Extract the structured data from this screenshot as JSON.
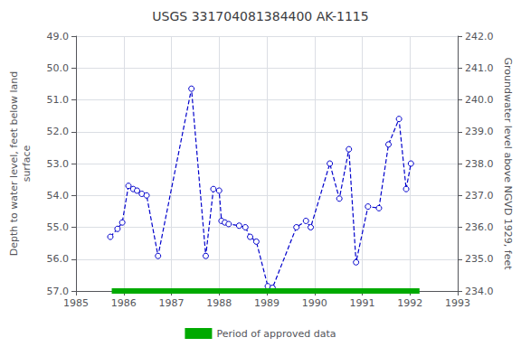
{
  "chart_data": {
    "type": "line",
    "title": "USGS 331704081384400 AK-1115",
    "ylabel": "Depth to water level, feet below land\nsurface",
    "y2label": "Groundwater level above NGVD 1929, feet",
    "xlim": [
      1985,
      1993
    ],
    "xticks": [
      1985,
      1986,
      1987,
      1988,
      1989,
      1990,
      1991,
      1992,
      1993
    ],
    "ylim": [
      57.0,
      49.0
    ],
    "yticks": [
      {
        "value": 49.0,
        "label": "49.0"
      },
      {
        "value": 50.0,
        "label": "50.0"
      },
      {
        "value": 51.0,
        "label": "51.0"
      },
      {
        "value": 52.0,
        "label": "52.0"
      },
      {
        "value": 53.0,
        "label": "53.0"
      },
      {
        "value": 54.0,
        "label": "54.0"
      },
      {
        "value": 55.0,
        "label": "55.0"
      },
      {
        "value": 56.0,
        "label": "56.0"
      },
      {
        "value": 57.0,
        "label": "57.0"
      }
    ],
    "y2lim": [
      234.0,
      242.0
    ],
    "y2ticks": [
      {
        "value": 242.0,
        "label": "242.0"
      },
      {
        "value": 241.0,
        "label": "241.0"
      },
      {
        "value": 240.0,
        "label": "240.0"
      },
      {
        "value": 239.0,
        "label": "239.0"
      },
      {
        "value": 238.0,
        "label": "238.0"
      },
      {
        "value": 237.0,
        "label": "237.0"
      },
      {
        "value": 236.0,
        "label": "236.0"
      },
      {
        "value": 235.0,
        "label": "235.0"
      },
      {
        "value": 234.0,
        "label": "234.0"
      }
    ],
    "grid": true,
    "legend": "bottom",
    "series": [
      {
        "type": "line",
        "color": "#0000cc",
        "marker": "circle",
        "line_style": "dashed",
        "x": [
          1985.72,
          1985.87,
          1985.97,
          1986.1,
          1986.2,
          1986.28,
          1986.38,
          1986.48,
          1986.72,
          1987.42,
          1987.72,
          1987.88,
          1988.0,
          1988.05,
          1988.12,
          1988.2,
          1988.42,
          1988.55,
          1988.65,
          1988.78,
          1989.02,
          1989.12,
          1989.62,
          1989.82,
          1989.92,
          1990.32,
          1990.52,
          1990.72,
          1990.87,
          1991.12,
          1991.35,
          1991.55,
          1991.77,
          1991.92,
          1992.02
        ],
        "values": [
          55.3,
          55.05,
          54.85,
          53.7,
          53.8,
          53.85,
          53.95,
          54.0,
          55.9,
          50.65,
          55.9,
          53.8,
          53.85,
          54.8,
          54.85,
          54.9,
          54.95,
          55.0,
          55.3,
          55.45,
          56.85,
          56.9,
          55.0,
          54.8,
          55.0,
          53.0,
          54.1,
          52.55,
          56.1,
          54.35,
          54.4,
          52.4,
          51.6,
          53.8,
          53.0
        ]
      },
      {
        "name": "Period of approved data",
        "type": "line",
        "color": "#00aa00",
        "marker": "none",
        "line_style": "solid",
        "x": [
          1985.75,
          1992.2
        ],
        "values": [
          57.0,
          57.0
        ]
      }
    ]
  }
}
